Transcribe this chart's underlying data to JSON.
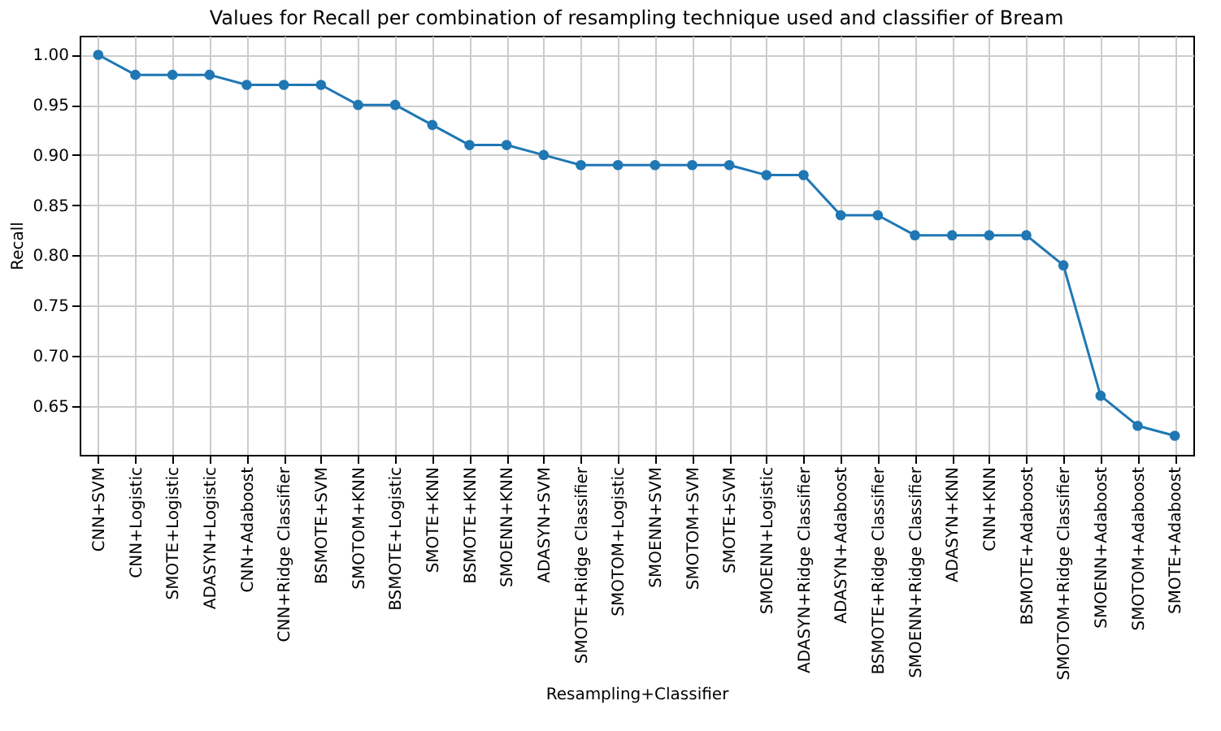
{
  "chart_data": {
    "type": "line",
    "title": "Values for Recall per combination of resampling technique used and classifier of Bream",
    "xlabel": "Resampling+Classifier",
    "ylabel": "Recall",
    "categories": [
      "CNN+SVM",
      "CNN+Logistic",
      "SMOTE+Logistic",
      "ADASYN+Logistic",
      "CNN+Adaboost",
      "CNN+Ridge Classifier",
      "BSMOTE+SVM",
      "SMOTOM+KNN",
      "BSMOTE+Logistic",
      "SMOTE+KNN",
      "BSMOTE+KNN",
      "SMOENN+KNN",
      "ADASYN+SVM",
      "SMOTE+Ridge Classifier",
      "SMOTOM+Logistic",
      "SMOENN+SVM",
      "SMOTOM+SVM",
      "SMOTE+SVM",
      "SMOENN+Logistic",
      "ADASYN+Ridge Classifier",
      "ADASYN+Adaboost",
      "BSMOTE+Ridge Classifier",
      "SMOENN+Ridge Classifier",
      "ADASYN+KNN",
      "CNN+KNN",
      "BSMOTE+Adaboost",
      "SMOTOM+Ridge Classifier",
      "SMOENN+Adaboost",
      "SMOTOM+Adaboost",
      "SMOTE+Adaboost"
    ],
    "series": [
      {
        "color": "#1f77b4",
        "values": [
          1.0,
          0.98,
          0.98,
          0.98,
          0.97,
          0.97,
          0.97,
          0.95,
          0.95,
          0.93,
          0.91,
          0.91,
          0.9,
          0.89,
          0.89,
          0.89,
          0.89,
          0.89,
          0.88,
          0.88,
          0.84,
          0.84,
          0.82,
          0.82,
          0.82,
          0.82,
          0.79,
          0.66,
          0.63,
          0.62
        ]
      }
    ],
    "ylim": [
      0.601,
      1.019
    ],
    "yticks": [
      {
        "value": 0.65,
        "label": "0.65"
      },
      {
        "value": 0.7,
        "label": "0.70"
      },
      {
        "value": 0.75,
        "label": "0.75"
      },
      {
        "value": 0.8,
        "label": "0.80"
      },
      {
        "value": 0.85,
        "label": "0.85"
      },
      {
        "value": 0.9,
        "label": "0.90"
      },
      {
        "value": 0.95,
        "label": "0.95"
      },
      {
        "value": 1.0,
        "label": "1.00"
      }
    ],
    "grid": true,
    "marker": "circle",
    "line_style": "solid"
  }
}
